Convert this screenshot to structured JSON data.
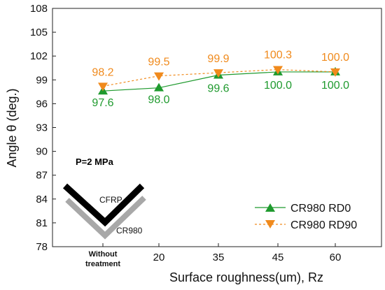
{
  "chart_data": {
    "type": "line",
    "title": "",
    "xlabel": "Surface roughness(um), Rz",
    "ylabel": "Angle θ (deg.)",
    "categories": [
      "Without treatment",
      "20",
      "35",
      "45",
      "60"
    ],
    "ylim": [
      78,
      108
    ],
    "yticks": [
      "78",
      "81",
      "84",
      "87",
      "90",
      "93",
      "96",
      "99",
      "102",
      "105",
      "108"
    ],
    "grid": false,
    "legend_position": "bottom-right",
    "series": [
      {
        "name": "CR980 RD0",
        "values": [
          97.6,
          98.0,
          99.6,
          100.0,
          100.0
        ],
        "labels": [
          "97.6",
          "98.0",
          "99.6",
          "100.0",
          "100.0"
        ],
        "color": "#1f9a2e",
        "marker": "triangle-up",
        "line_style": "solid"
      },
      {
        "name": "CR980 RD90",
        "values": [
          98.2,
          99.5,
          99.9,
          100.3,
          100.0
        ],
        "labels": [
          "98.2",
          "99.5",
          "99.9",
          "100.3",
          "100.0"
        ],
        "color": "#f08a1c",
        "marker": "triangle-down",
        "line_style": "dashed"
      }
    ],
    "annotations": {
      "pressure": "P=2 MPa",
      "upper_material": "CFRP",
      "lower_material": "CR980"
    }
  }
}
